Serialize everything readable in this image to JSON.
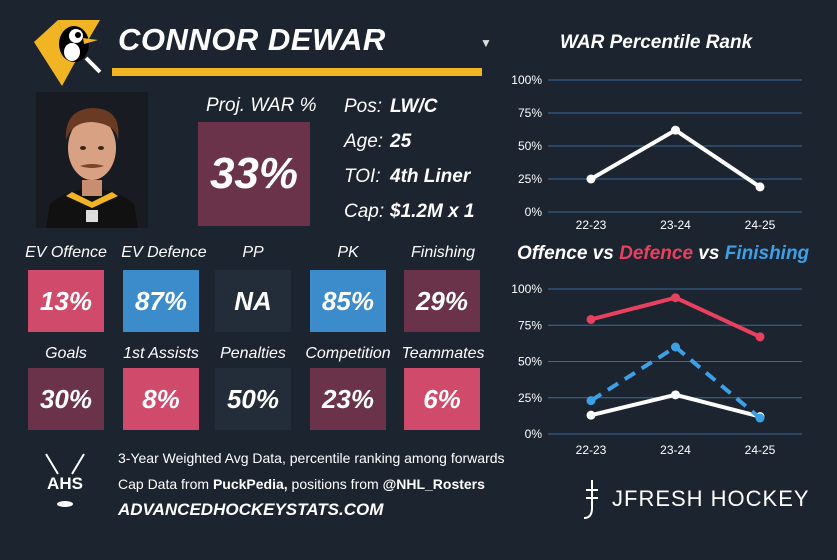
{
  "header": {
    "player_name": "CONNOR DEWAR",
    "dropdown_icon": "chevron-down-icon"
  },
  "proj": {
    "label": "Proj. WAR %",
    "value": "33%"
  },
  "info": {
    "pos_label": "Pos:",
    "pos_value": "LW/C",
    "age_label": "Age:",
    "age_value": "25",
    "toi_label": "TOI:",
    "toi_value": "4th Liner",
    "cap_label": "Cap:",
    "cap_value": "$1.2M x 1"
  },
  "stats_row1": [
    {
      "label": "EV Offence",
      "value": "13%",
      "color": "#d04a6b"
    },
    {
      "label": "EV Defence",
      "value": "87%",
      "color": "#3c8ccb"
    },
    {
      "label": "PP",
      "value": "NA",
      "color": "#232d3a"
    },
    {
      "label": "PK",
      "value": "85%",
      "color": "#3c8ccb"
    },
    {
      "label": "Finishing",
      "value": "29%",
      "color": "#6b3349"
    }
  ],
  "stats_row2": [
    {
      "label": "Goals",
      "value": "30%",
      "color": "#6b3349"
    },
    {
      "label": "1st Assists",
      "value": "8%",
      "color": "#d04a6b"
    },
    {
      "label": "Penalties",
      "value": "50%",
      "color": "#232d3a"
    },
    {
      "label": "Competition",
      "value": "23%",
      "color": "#6b3349"
    },
    {
      "label": "Teammates",
      "value": "6%",
      "color": "#d04a6b"
    }
  ],
  "footer": {
    "ahs_logo_text": "AHS",
    "line1": "3-Year Weighted Avg Data, percentile ranking among forwards",
    "line2_prefix": "Cap Data from ",
    "line2_source1": "PuckPedia,",
    "line2_mid": " positions from ",
    "line2_source2": "@NHL_Rosters",
    "site": "ADVANCEDHOCKEYSTATS.COM",
    "brand": "JFRESH HOCKEY"
  },
  "chart1": {
    "title": "WAR Percentile Rank",
    "y_ticks": [
      "100%",
      "75%",
      "50%",
      "25%",
      "0%"
    ],
    "x_ticks": [
      "22-23",
      "23-24",
      "24-25"
    ]
  },
  "chart2": {
    "title_offence": "Offence",
    "title_vs1": " vs ",
    "title_defence": "Defence",
    "title_vs2": " vs ",
    "title_finishing": "Finishing",
    "y_ticks": [
      "100%",
      "75%",
      "50%",
      "25%",
      "0%"
    ],
    "x_ticks": [
      "22-23",
      "23-24",
      "24-25"
    ]
  },
  "chart_data": [
    {
      "type": "line",
      "title": "WAR Percentile Rank",
      "x": [
        "22-23",
        "23-24",
        "24-25"
      ],
      "ylim": [
        0,
        100
      ],
      "series": [
        {
          "values": [
            25,
            62,
            19
          ],
          "color": "#ffffff",
          "style": "solid"
        }
      ]
    },
    {
      "type": "line",
      "title": "Offence vs Defence vs Finishing",
      "x": [
        "22-23",
        "23-24",
        "24-25"
      ],
      "ylim": [
        0,
        100
      ],
      "series": [
        {
          "name": "Offence",
          "values": [
            13,
            27,
            12
          ],
          "color": "#ffffff",
          "style": "solid"
        },
        {
          "name": "Defence",
          "values": [
            79,
            94,
            67
          ],
          "color": "#e8415f",
          "style": "solid"
        },
        {
          "name": "Finishing",
          "values": [
            23,
            60,
            11
          ],
          "color": "#3ea0e4",
          "style": "dashed"
        }
      ]
    }
  ]
}
